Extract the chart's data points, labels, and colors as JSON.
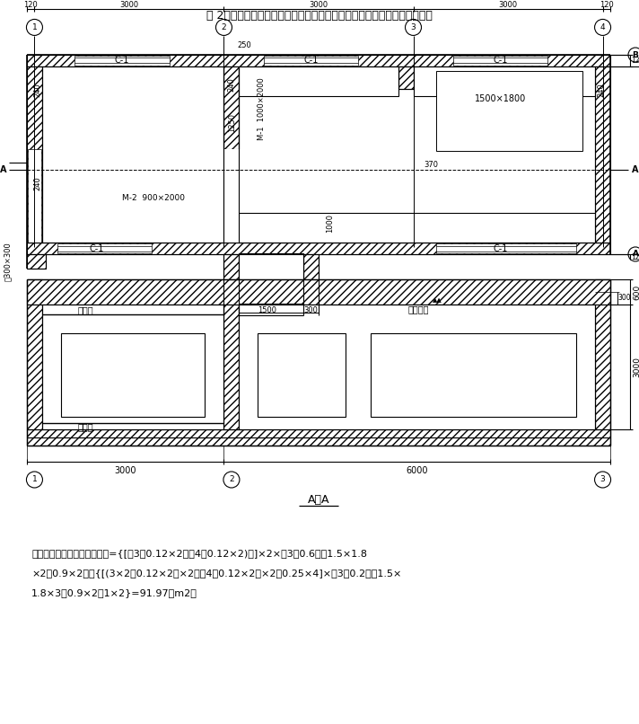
{
  "title": "例 2：平房内墙面抹水泥砂浆，如图所示。试计算内墙面抹水泥砂浆工程量",
  "sol1": "解：内墙面抹水泥砂浆工程量={[（3－0.12×2＋（4－0.12×2)）]×2×（3＋0.6）－1.5×1.8",
  "sol2": "×2－0.9×2｝＋{[(3×2－0.12×2）×2＋（4－0.12×2）×2＋0.25×4]×（3＋0.2）－1.5×",
  "sol3": "1.8×3－0.9×2－1×2}=91.97（m2）",
  "aa_label": "A－A"
}
